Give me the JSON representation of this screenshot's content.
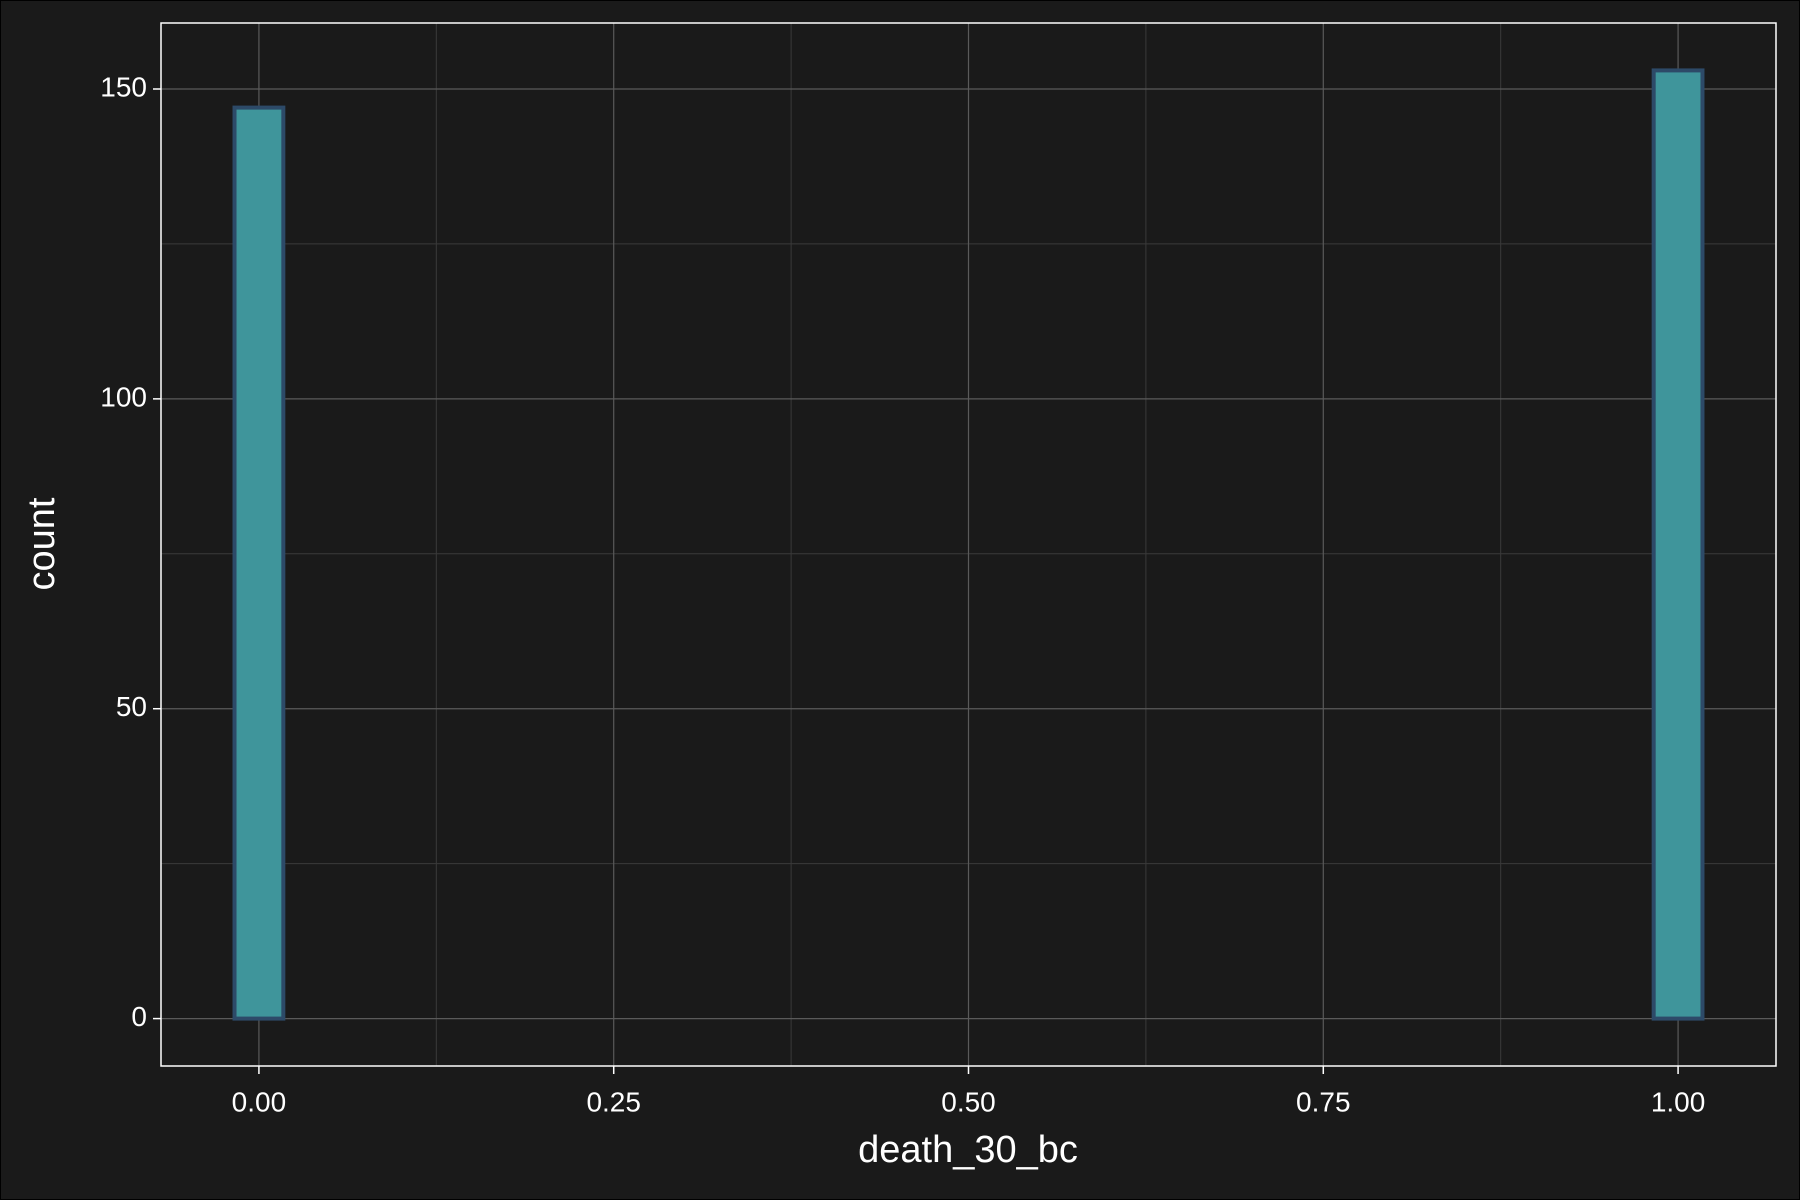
{
  "chart_data": {
    "type": "histogram",
    "x_label": "death_30_bc",
    "y_label": "count",
    "bins": [
      -0.0172,
      0.0172,
      0.0517,
      0.0862,
      0.1207,
      0.1552,
      0.1897,
      0.2241,
      0.2586,
      0.2931,
      0.3276,
      0.3621,
      0.3966,
      0.431,
      0.4655,
      0.5,
      0.5345,
      0.569,
      0.6034,
      0.6379,
      0.6724,
      0.7069,
      0.7414,
      0.7759,
      0.8103,
      0.8448,
      0.8793,
      0.9138,
      0.9483,
      0.9828,
      1.0172
    ],
    "values": [
      147,
      0,
      0,
      0,
      0,
      0,
      0,
      0,
      0,
      0,
      0,
      0,
      0,
      0,
      0,
      0,
      0,
      0,
      0,
      0,
      0,
      0,
      0,
      0,
      0,
      0,
      0,
      0,
      0,
      153
    ],
    "color": "#3f959b",
    "edge_color": "#2d4a68",
    "xlim": [
      -0.069,
      1.069
    ],
    "ylim": [
      -7.65,
      160.65
    ],
    "xticks": [
      {
        "value": 0,
        "label": "0.00"
      },
      {
        "value": 0.25,
        "label": "0.25"
      },
      {
        "value": 0.5,
        "label": "0.50"
      },
      {
        "value": 0.75,
        "label": "0.75"
      },
      {
        "value": 1,
        "label": "1.00"
      }
    ],
    "yticks": [
      0,
      50,
      100,
      150
    ],
    "xminor": [
      0.125,
      0.375,
      0.625,
      0.875
    ],
    "yminor": [
      25,
      75,
      125
    ],
    "grid": true
  }
}
